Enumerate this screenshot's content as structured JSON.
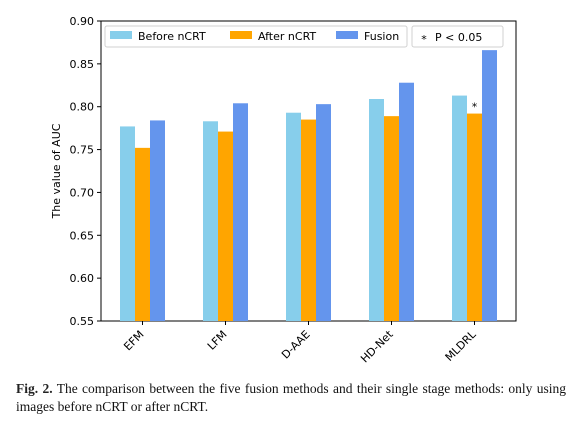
{
  "chart_data": {
    "type": "bar",
    "title": "",
    "xlabel": "",
    "ylabel": "The value of AUC",
    "ylim": [
      0.55,
      0.9
    ],
    "yticks": [
      "0.55",
      "0.60",
      "0.65",
      "0.70",
      "0.75",
      "0.80",
      "0.85",
      "0.90"
    ],
    "categories": [
      "EFM",
      "LFM",
      "D-AAE",
      "HD-Net",
      "MLDRL"
    ],
    "series": [
      {
        "name": "Before nCRT",
        "color": "#87CEEB",
        "values": [
          0.777,
          0.783,
          0.793,
          0.809,
          0.813
        ]
      },
      {
        "name": "After nCRT",
        "color": "#FFA500",
        "values": [
          0.752,
          0.771,
          0.785,
          0.789,
          0.792
        ]
      },
      {
        "name": "Fusion",
        "color": "#6495ED",
        "values": [
          0.784,
          0.804,
          0.803,
          0.828,
          0.866
        ]
      }
    ],
    "annotations": [
      {
        "text": "*",
        "category": "MLDRL",
        "series": "After nCRT"
      }
    ],
    "legend": {
      "position": "top",
      "note": "P < 0.05",
      "note_marker": "*"
    },
    "grid": false
  },
  "caption": {
    "label": "Fig. 2.",
    "text": "The comparison between the five fusion methods and their single stage methods: only using images before nCRT or after nCRT."
  }
}
